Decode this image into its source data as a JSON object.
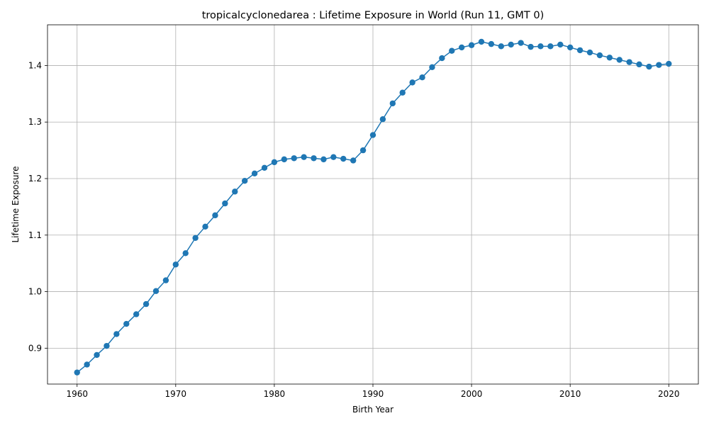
{
  "chart_data": {
    "type": "line",
    "title": "tropicalcyclonedarea : Lifetime Exposure in World (Run 11, GMT 0)",
    "xlabel": "Birth Year",
    "ylabel": "Lifetime Exposure",
    "xlim": [
      1957,
      2023
    ],
    "ylim": [
      0.8365,
      1.472
    ],
    "xticks": [
      1960,
      1970,
      1980,
      1990,
      2000,
      2010,
      2020
    ],
    "xtick_labels": [
      "1960",
      "1970",
      "1980",
      "1990",
      "2000",
      "2010",
      "2020"
    ],
    "yticks": [
      0.9,
      1.0,
      1.1,
      1.2,
      1.3,
      1.4
    ],
    "ytick_labels": [
      "0.9",
      "1.0",
      "1.1",
      "1.2",
      "1.3",
      "1.4"
    ],
    "grid": true,
    "color": "#1f77b4",
    "x": [
      1960,
      1961,
      1962,
      1963,
      1964,
      1965,
      1966,
      1967,
      1968,
      1969,
      1970,
      1971,
      1972,
      1973,
      1974,
      1975,
      1976,
      1977,
      1978,
      1979,
      1980,
      1981,
      1982,
      1983,
      1984,
      1985,
      1986,
      1987,
      1988,
      1989,
      1990,
      1991,
      1992,
      1993,
      1994,
      1995,
      1996,
      1997,
      1998,
      1999,
      2000,
      2001,
      2002,
      2003,
      2004,
      2005,
      2006,
      2007,
      2008,
      2009,
      2010,
      2011,
      2012,
      2013,
      2014,
      2015,
      2016,
      2017,
      2018,
      2019,
      2020
    ],
    "y": [
      0.857,
      0.871,
      0.888,
      0.904,
      0.925,
      0.943,
      0.96,
      0.978,
      1.001,
      1.02,
      1.048,
      1.068,
      1.095,
      1.115,
      1.135,
      1.156,
      1.177,
      1.196,
      1.209,
      1.219,
      1.229,
      1.234,
      1.236,
      1.238,
      1.236,
      1.234,
      1.238,
      1.235,
      1.232,
      1.25,
      1.277,
      1.305,
      1.333,
      1.352,
      1.37,
      1.379,
      1.397,
      1.413,
      1.426,
      1.432,
      1.436,
      1.442,
      1.438,
      1.434,
      1.437,
      1.44,
      1.433,
      1.434,
      1.434,
      1.437,
      1.432,
      1.427,
      1.423,
      1.418,
      1.414,
      1.41,
      1.406,
      1.402,
      1.398,
      1.401,
      1.403
    ]
  }
}
